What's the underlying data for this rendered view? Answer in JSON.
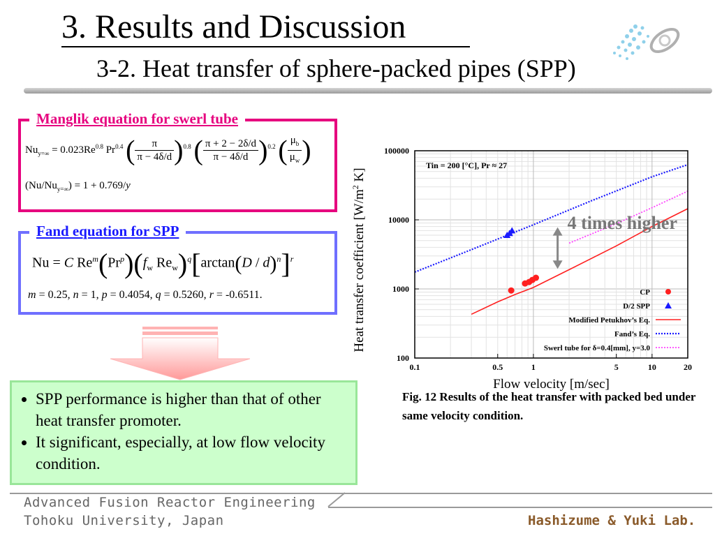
{
  "header": {
    "title": "3. Results and Discussion",
    "subtitle": "3-2. Heat transfer of sphere-packed pipes (SPP)"
  },
  "box1": {
    "title": "Manglik equation for swerl tube",
    "eq1": {
      "lhs": "Nu",
      "lhs_sub": "y=∞",
      "equals": "= 0.023Re",
      "re_exp": "0.8",
      "pr": "Pr",
      "pr_exp": "0.4",
      "f1_num": "π",
      "f1_den": "π − 4δ/d",
      "f1_exp": "0.8",
      "f2_num": "π + 2 − 2δ/d",
      "f2_den": "π − 4δ/d",
      "f2_exp": "0.2",
      "f3_num": "μ",
      "f3_num_sub": "b",
      "f3_den": "μ",
      "f3_den_sub": "w"
    },
    "eq2": {
      "left": "(Nu/Nu",
      "left_sub": "y=∞",
      "right": ") = 1 + 0.769/",
      "var": "y"
    }
  },
  "box2": {
    "title": "Fand equation for SPP",
    "eq": {
      "lhs": "Nu = ",
      "c": "C",
      "re": " Re",
      "re_exp": "m",
      "pr_open": "(",
      "pr": "Pr",
      "pr_exp": "p",
      "pr_close": ")",
      "f_open": "(",
      "f": "f",
      "f_sub": "w",
      "rew": " Re",
      "rew_sub": "w",
      "f_close": ")",
      "f_exp": "q",
      "b_open": "[",
      "arctan": "arctan",
      "a_open": "(",
      "D": "D",
      "slash": " / ",
      "dd": "d",
      "a_close": ")",
      "a_exp": "n",
      "b_close": "]",
      "b_exp": "r"
    },
    "params": {
      "m": "m",
      "m_val": " = 0.25, ",
      "n": "n",
      "n_val": " = 1,  ",
      "p": "p",
      "p_val": " = 0.4054, ",
      "q": "q",
      "q_val": " = 0.5260, ",
      "r": "r",
      "r_val": " = -0.6511."
    }
  },
  "conclusion": {
    "items": [
      "SPP performance is higher than that of other heat transfer promoter.",
      "It significant, especially, at low flow velocity condition."
    ]
  },
  "chart_data": {
    "type": "scatter",
    "title": "",
    "xlabel": "Flow velocity [m/sec]",
    "ylabel": "Heat transfer coefficient [W/m² K]",
    "ylabel_parts": {
      "main": "Heat transfer coefficient [W/m",
      "sup": "2",
      "tail": " K]"
    },
    "xscale": "log",
    "yscale": "log",
    "xlim": [
      0.1,
      20
    ],
    "ylim": [
      100,
      100000
    ],
    "xticks": [
      0.1,
      0.5,
      1,
      5,
      10,
      20
    ],
    "xtick_labels": [
      "0.1",
      "0.5",
      "1",
      "5",
      "10",
      "20"
    ],
    "yticks": [
      100,
      1000,
      10000,
      100000
    ],
    "ytick_labels": [
      "100",
      "1000",
      "10000",
      "100000"
    ],
    "annotation_conditions": "Tin = 200 [°C], Pr ≈ 27",
    "annotation_ratio": "4 times higher",
    "legend_position": "bottom-right",
    "colors": {
      "cp": "#ff2020",
      "spp": "#1a1aff",
      "petukhov": "#ff2020",
      "fand": "#1a1aff",
      "swirl": "#ff44ff",
      "ratio_arrow": "#888888"
    },
    "series": [
      {
        "name": "CP",
        "style": "marker-circle",
        "x": [
          0.65,
          0.85,
          0.92,
          0.98,
          1.05
        ],
        "y": [
          950,
          1200,
          1260,
          1350,
          1450
        ]
      },
      {
        "name": "D/2 SPP",
        "style": "marker-triangle",
        "x": [
          0.6,
          0.63,
          0.66
        ],
        "y": [
          6000,
          6400,
          7000
        ]
      },
      {
        "name": "Modified Petukhov’s Eq.",
        "style": "line-solid",
        "x": [
          0.3,
          0.5,
          0.7,
          1,
          2,
          5,
          10,
          20
        ],
        "y": [
          430,
          650,
          830,
          1050,
          1900,
          4200,
          8000,
          14500
        ]
      },
      {
        "name": "Fand’s Eq.",
        "style": "line-dotted",
        "x": [
          0.1,
          0.3,
          1,
          3,
          10,
          20
        ],
        "y": [
          1750,
          3700,
          8500,
          18500,
          42000,
          63000
        ]
      },
      {
        "name": "Swerl tube for δ=0.4[mm], y=3.0",
        "style": "line-dotted-thin",
        "x": [
          2,
          5,
          10,
          20
        ],
        "y": [
          4600,
          8800,
          15000,
          26000
        ]
      }
    ]
  },
  "caption": "Fig. 12 Results of the heat transfer with packed bed under same velocity condition.",
  "footer": {
    "line1": "Advanced Fusion Reactor Engineering",
    "line2": "Tohoku University, Japan",
    "lab": "Hashizume & Yuki Lab."
  }
}
